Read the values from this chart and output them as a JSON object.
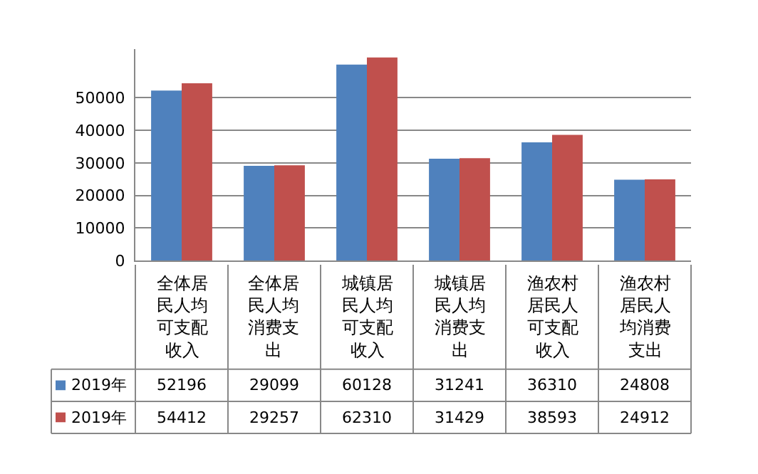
{
  "chart_data": {
    "type": "bar",
    "categories": [
      "全体居民人均可支配收入",
      "全体居民人均消费支出",
      "城镇居民人均可支配收入",
      "城镇居民人均消费支出",
      "渔农村居民人可支配收入",
      "渔农村居民人均消费支出"
    ],
    "series": [
      {
        "name": "2019年",
        "color": "#4f81bd",
        "values": [
          52196,
          29099,
          60128,
          31241,
          36310,
          24808
        ]
      },
      {
        "name": "2019年",
        "color": "#c0504d",
        "values": [
          54412,
          29257,
          62310,
          31429,
          38593,
          24912
        ]
      }
    ],
    "ylim": [
      0,
      65000
    ],
    "yticks": [
      0,
      10000,
      20000,
      30000,
      40000,
      50000
    ],
    "grid": "y",
    "legend": "bottom",
    "data_labels": true
  }
}
